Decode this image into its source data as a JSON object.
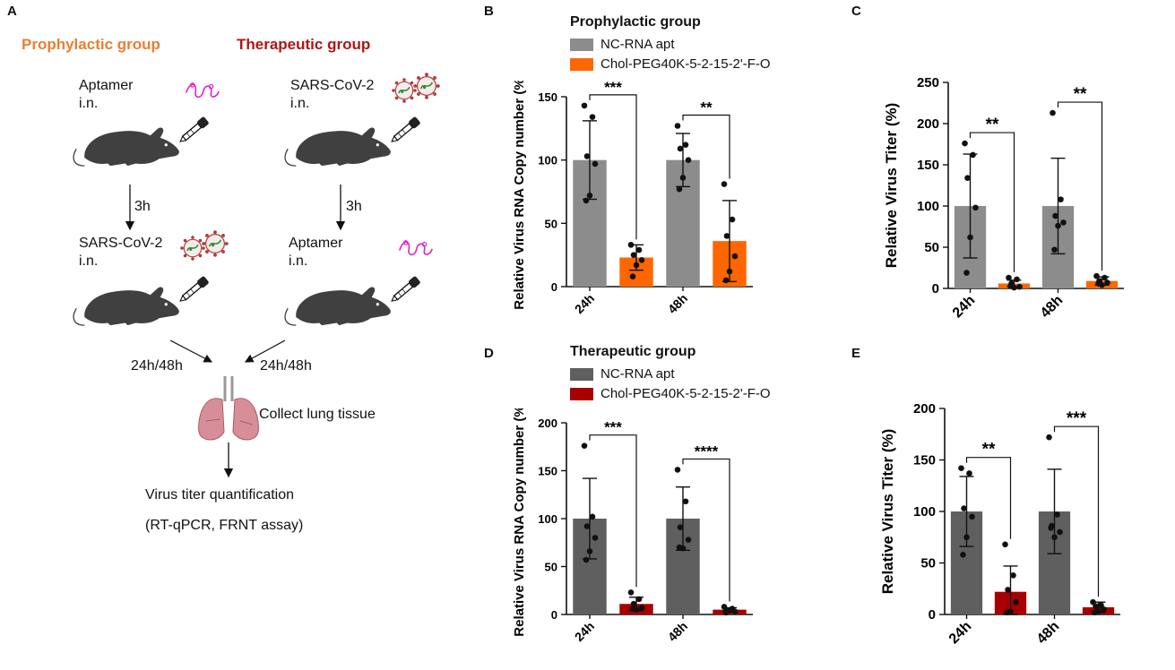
{
  "panel_letters": {
    "a": "A",
    "b": "B",
    "c": "C",
    "d": "D",
    "e": "E"
  },
  "schematic": {
    "prophylactic_title": "Prophylactic group",
    "therapeutic_title": "Therapeutic group",
    "prophylactic": {
      "step1": "Aptamer\ni.n.",
      "interval": "3h",
      "step2": "SARS-CoV-2\ni.n."
    },
    "therapeutic": {
      "step1": "SARS-CoV-2\ni.n.",
      "interval": "3h",
      "step2": "Aptamer\ni.n."
    },
    "timepoints_left": "24h/48h",
    "timepoints_right": "24h/48h",
    "collect": "Collect lung tissue",
    "quantification": "Virus titer quantification",
    "assays": "(RT-qPCR, FRNT assay)"
  },
  "colors": {
    "prophylactic_title": "#ED7D31",
    "therapeutic_title": "#B01515",
    "nc_light": "#8C8C8C",
    "chol_orange": "#FF6600",
    "nc_dark": "#5F5F5F",
    "chol_red": "#A80000",
    "mouse": "#404040",
    "aptamer": "#E020C8",
    "lung": "#D88E98"
  },
  "chart_data": [
    {
      "id": "B",
      "type": "bar",
      "title": "Prophylactic group",
      "ylabel": "Relative Virus RNA Copy number (%)",
      "ylim": [
        0,
        150
      ],
      "yticks": [
        0,
        50,
        100,
        150
      ],
      "categories": [
        "24h",
        "48h"
      ],
      "legend_placement": "top",
      "series": [
        {
          "name": "NC-RNA apt",
          "color": "#8C8C8C",
          "values": [
            100,
            100
          ],
          "sd": [
            31,
            21
          ],
          "points": [
            [
              143,
              134,
              103,
              97,
              72,
              68
            ],
            [
              127,
              112,
              109,
              100,
              86,
              77
            ]
          ]
        },
        {
          "name": "Chol-PEG40K-5-2-15-2'-F-O",
          "color": "#FF6600",
          "values": [
            23,
            36
          ],
          "sd": [
            10,
            32
          ],
          "points": [
            [
              33,
              29,
              25,
              21,
              17,
              8
            ],
            [
              81,
              53,
              40,
              24,
              12,
              5
            ]
          ]
        }
      ],
      "significance": [
        {
          "category": "24h",
          "label": "***"
        },
        {
          "category": "48h",
          "label": "**"
        }
      ]
    },
    {
      "id": "C",
      "type": "bar",
      "ylabel": "Relative Virus Titer (%)",
      "ylim": [
        0,
        250
      ],
      "yticks": [
        0,
        50,
        100,
        150,
        200,
        250
      ],
      "categories": [
        "24h",
        "48h"
      ],
      "series": [
        {
          "name": "NC-RNA apt",
          "color": "#8C8C8C",
          "values": [
            100,
            100
          ],
          "sd": [
            63,
            58
          ],
          "points": [
            [
              176,
              162,
              134,
              98,
              62,
              19
            ],
            [
              213,
              108,
              88,
              80,
              76,
              47
            ]
          ]
        },
        {
          "name": "Chol-PEG40K-5-2-15-2'-F-O",
          "color": "#FF6600",
          "values": [
            6,
            9
          ],
          "sd": [
            4,
            5
          ],
          "points": [
            [
              13,
              11,
              6,
              2,
              1,
              3
            ],
            [
              15,
              13,
              9,
              7,
              4,
              6
            ]
          ]
        }
      ],
      "significance": [
        {
          "category": "24h",
          "label": "**"
        },
        {
          "category": "48h",
          "label": "**"
        }
      ]
    },
    {
      "id": "D",
      "type": "bar",
      "title": "Therapeutic group",
      "ylabel": "Relative Virus RNA Copy number (%)",
      "ylim": [
        0,
        200
      ],
      "yticks": [
        0,
        50,
        100,
        150,
        200
      ],
      "categories": [
        "24h",
        "48h"
      ],
      "legend_placement": "top",
      "series": [
        {
          "name": "NC-RNA apt",
          "color": "#5F5F5F",
          "values": [
            100,
            100
          ],
          "sd": [
            42,
            33
          ],
          "points": [
            [
              176,
              102,
              92,
              80,
              66,
              57
            ],
            [
              151,
              118,
              91,
              78,
              69,
              70
            ]
          ]
        },
        {
          "name": "Chol-PEG40K-5-2-15-2'-F-O",
          "color": "#A80000",
          "values": [
            11,
            5
          ],
          "sd": [
            7,
            2
          ],
          "points": [
            [
              23,
              16,
              11,
              7,
              5,
              6
            ],
            [
              8,
              6,
              4,
              3,
              4,
              2
            ]
          ]
        }
      ],
      "significance": [
        {
          "category": "24h",
          "label": "***"
        },
        {
          "category": "48h",
          "label": "****"
        }
      ]
    },
    {
      "id": "E",
      "type": "bar",
      "ylabel": "Relative Virus Titer (%)",
      "ylim": [
        0,
        200
      ],
      "yticks": [
        0,
        50,
        100,
        150,
        200
      ],
      "categories": [
        "24h",
        "48h"
      ],
      "series": [
        {
          "name": "NC-RNA apt",
          "color": "#5F5F5F",
          "values": [
            100,
            100
          ],
          "sd": [
            34,
            41
          ],
          "points": [
            [
              142,
              137,
              103,
              95,
              75,
              58
            ],
            [
              172,
              97,
              86,
              80,
              75,
              84
            ]
          ]
        },
        {
          "name": "Chol-PEG40K-5-2-15-2'-F-O",
          "color": "#A80000",
          "values": [
            22,
            7
          ],
          "sd": [
            25,
            5
          ],
          "points": [
            [
              68,
              38,
              24,
              12,
              3,
              2
            ],
            [
              12,
              9,
              8,
              5,
              3,
              2
            ]
          ]
        }
      ],
      "significance": [
        {
          "category": "24h",
          "label": "**"
        },
        {
          "category": "48h",
          "label": "***"
        }
      ]
    }
  ]
}
